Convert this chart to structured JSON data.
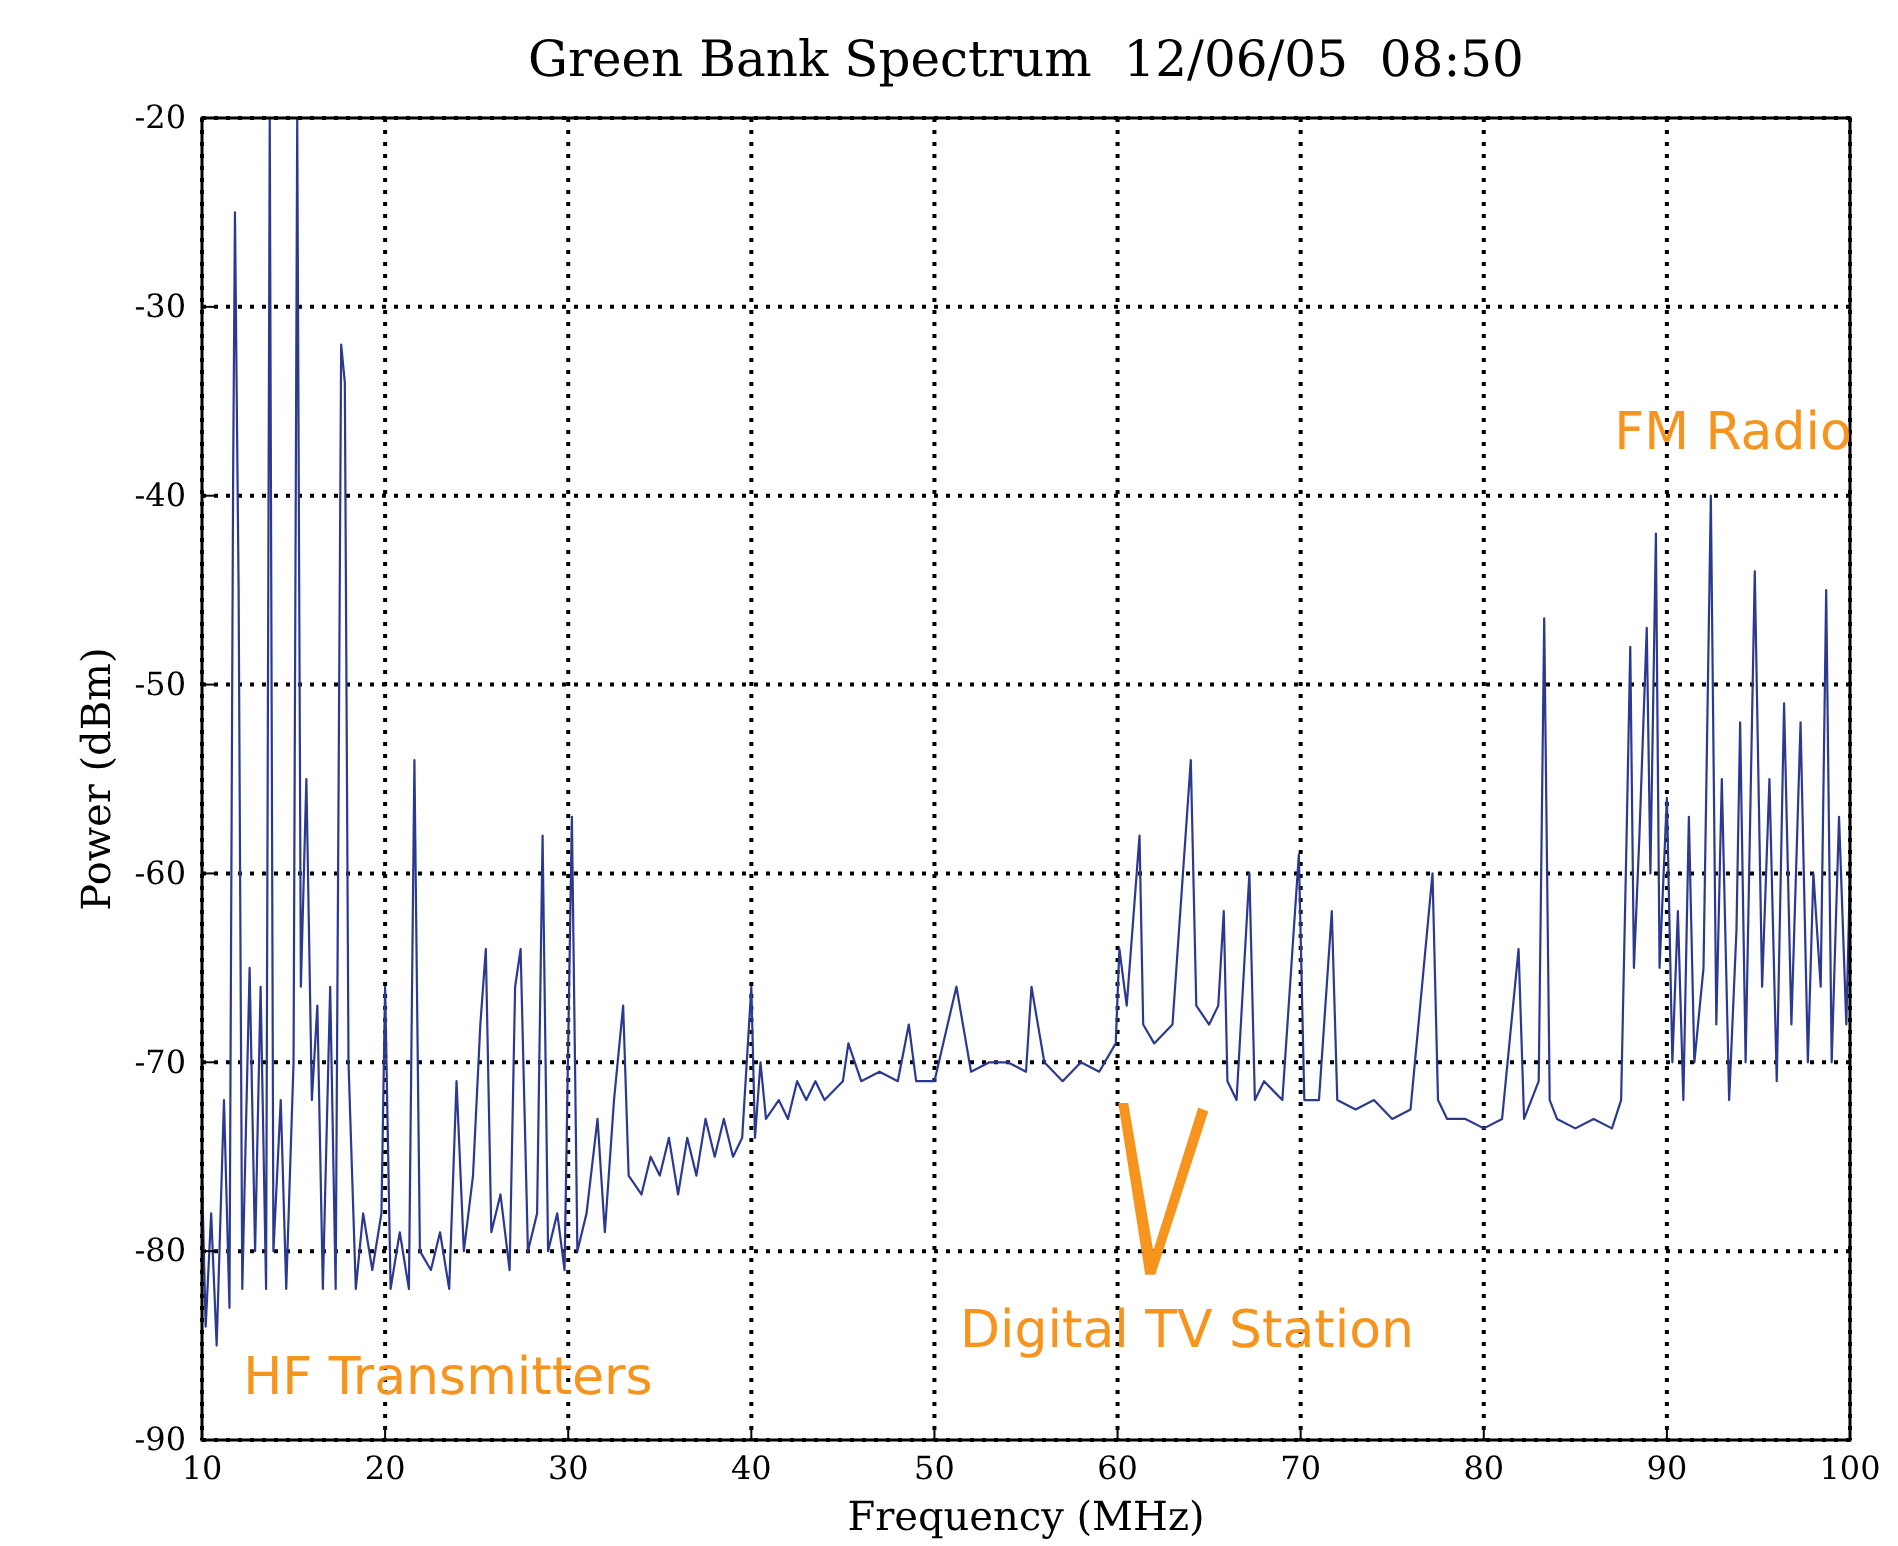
{
  "chart_data": {
    "type": "line",
    "title": "Green Bank Spectrum  12/06/05  08:50",
    "xlabel": "Frequency (MHz)",
    "ylabel": "Power (dBm)",
    "xlim": [
      10,
      100
    ],
    "xticks": [
      10,
      20,
      30,
      40,
      50,
      60,
      70,
      80,
      90,
      100
    ],
    "ylim": [
      -90,
      -20
    ],
    "yticks": [
      -90,
      -80,
      -70,
      -60,
      -50,
      -40,
      -30,
      -20
    ],
    "grid": true,
    "marker": "none",
    "line_style": "solid",
    "annotations": [
      "HF Transmitters",
      "Digital TV Station",
      "FM Radio"
    ],
    "series": [
      {
        "color": "#2b3990",
        "x": [
          10.0,
          10.2,
          10.5,
          10.8,
          11.2,
          11.5,
          11.7,
          11.8,
          12.0,
          12.2,
          12.6,
          12.9,
          13.2,
          13.5,
          13.7,
          13.9,
          14.3,
          14.6,
          15.0,
          15.2,
          15.4,
          15.7,
          16.0,
          16.3,
          16.6,
          17.0,
          17.3,
          17.6,
          17.8,
          18.0,
          18.4,
          18.8,
          19.3,
          19.8,
          20.0,
          20.3,
          20.8,
          21.3,
          21.6,
          21.9,
          22.5,
          23.0,
          23.5,
          23.9,
          24.3,
          24.8,
          25.2,
          25.5,
          25.8,
          26.3,
          26.8,
          27.1,
          27.4,
          27.8,
          28.3,
          28.6,
          28.9,
          29.4,
          29.8,
          30.2,
          30.5,
          31.0,
          31.6,
          32.0,
          32.5,
          33.0,
          33.3,
          34.0,
          34.5,
          35.0,
          35.5,
          36.0,
          36.5,
          37.0,
          37.5,
          38.0,
          38.5,
          39.0,
          39.5,
          40.0,
          40.2,
          40.5,
          40.8,
          41.5,
          42.0,
          42.5,
          43.0,
          43.5,
          44.0,
          45.0,
          45.3,
          46.0,
          47.0,
          48.0,
          48.6,
          49.0,
          50.0,
          51.2,
          52.0,
          53.0,
          54.0,
          55.0,
          55.3,
          56.0,
          57.0,
          58.0,
          59.0,
          59.9,
          60.1,
          60.5,
          61.2,
          61.4,
          62.0,
          63.0,
          64.0,
          64.3,
          65.0,
          65.5,
          65.8,
          66.0,
          66.5,
          67.2,
          67.5,
          68.0,
          69.0,
          69.9,
          70.2,
          71.0,
          71.7,
          72.0,
          73.0,
          74.0,
          75.0,
          76.0,
          77.2,
          77.5,
          78.0,
          79.0,
          80.0,
          81.0,
          81.9,
          82.2,
          83.0,
          83.3,
          83.6,
          84.0,
          85.0,
          86.0,
          87.0,
          87.5,
          87.8,
          88.0,
          88.2,
          88.5,
          88.9,
          89.1,
          89.4,
          89.6,
          90.0,
          90.3,
          90.6,
          90.9,
          91.2,
          91.5,
          92.0,
          92.4,
          92.7,
          93.0,
          93.4,
          93.8,
          94.0,
          94.3,
          94.8,
          95.2,
          95.6,
          96.0,
          96.4,
          96.8,
          97.3,
          97.7,
          98.0,
          98.4,
          98.7,
          99.0,
          99.4,
          99.8,
          100.0
        ],
        "values": [
          -76,
          -84,
          -78,
          -85,
          -72,
          -83,
          -39,
          -25,
          -45,
          -82,
          -65,
          -80,
          -66,
          -82,
          -20,
          -80,
          -72,
          -82,
          -70,
          -20,
          -66,
          -55,
          -72,
          -67,
          -82,
          -66,
          -82,
          -32,
          -34,
          -70,
          -82,
          -78,
          -81,
          -78,
          -66,
          -82,
          -79,
          -82,
          -54,
          -80,
          -81,
          -79,
          -82,
          -71,
          -80,
          -76,
          -68,
          -64,
          -79,
          -77,
          -81,
          -66,
          -64,
          -80,
          -78,
          -58,
          -80,
          -78,
          -81,
          -57,
          -80,
          -78,
          -73,
          -79,
          -72,
          -67,
          -76,
          -77,
          -75,
          -76,
          -74,
          -77,
          -74,
          -76,
          -73,
          -75,
          -73,
          -75,
          -74,
          -66,
          -74,
          -70,
          -73,
          -72,
          -73,
          -71,
          -72,
          -71,
          -72,
          -71,
          -69,
          -71,
          -70.5,
          -71,
          -68,
          -71,
          -71,
          -66,
          -70.5,
          -70,
          -70,
          -70.5,
          -66,
          -70,
          -71,
          -70,
          -70.5,
          -69,
          -64,
          -67,
          -58,
          -68,
          -69,
          -68,
          -54,
          -67,
          -68,
          -67,
          -62,
          -71,
          -72,
          -60,
          -72,
          -71,
          -72,
          -59,
          -72,
          -72,
          -62,
          -72,
          -72.5,
          -72,
          -73,
          -72.5,
          -60,
          -72,
          -73,
          -73,
          -73.5,
          -73,
          -64,
          -73,
          -71,
          -46.5,
          -72,
          -73,
          -73.5,
          -73,
          -73.5,
          -72,
          -58,
          -48,
          -65,
          -58,
          -47,
          -60,
          -42,
          -65,
          -56,
          -70,
          -62,
          -72,
          -57,
          -70,
          -65,
          -40,
          -68,
          -55,
          -72,
          -63,
          -52,
          -70,
          -44,
          -66,
          -55,
          -71,
          -51,
          -68,
          -52,
          -70,
          -60,
          -66,
          -45,
          -70,
          -57,
          -68,
          -60
        ]
      }
    ]
  }
}
